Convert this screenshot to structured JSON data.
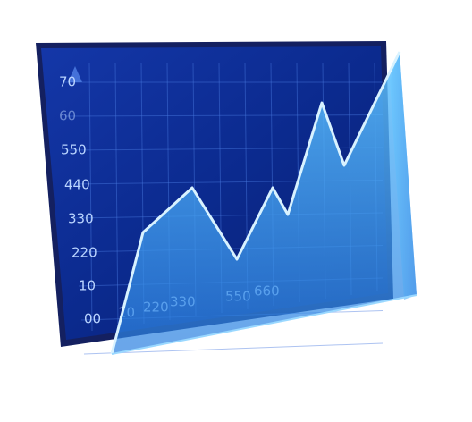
{
  "y_labels": [
    "70",
    "60",
    "550",
    "440",
    "330",
    "220",
    "10",
    "00"
  ],
  "x_labels": [
    "10",
    "220",
    "330",
    "550",
    "660"
  ]
}
